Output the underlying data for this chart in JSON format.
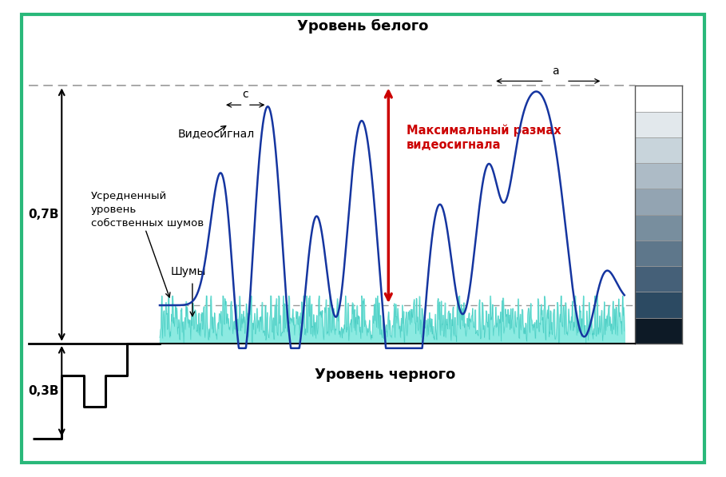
{
  "bg_color": "#ffffff",
  "border_color": "#29b87a",
  "white_level": 1.0,
  "black_level": 0.0,
  "noise_avg_level": 0.19,
  "label_white": "Уровень белого",
  "label_black": "Уровень черного",
  "label_video": "Видеосигнал",
  "label_noise": "Шумы",
  "label_avg_noise": "Усредненный\nуровень\nсобственных шумов",
  "label_max_swing": "Максимальный размах\nвидеосигнала",
  "label_07v": "0,7В",
  "label_03v": "0,3В",
  "label_a": "a",
  "label_c": "c",
  "signal_color": "#1535a0",
  "noise_fill_color": "#80e8de",
  "noise_line_color": "#40c8be",
  "arrow_color": "#cc0000",
  "gray_bar_colors": [
    "#ffffff",
    "#e2e8ec",
    "#c8d4db",
    "#adbbc6",
    "#93a4b2",
    "#788e9e",
    "#5e778b",
    "#456078",
    "#2c4a62",
    "#0d1a26"
  ],
  "sync_color": "#000000",
  "dashed_color": "#999999"
}
